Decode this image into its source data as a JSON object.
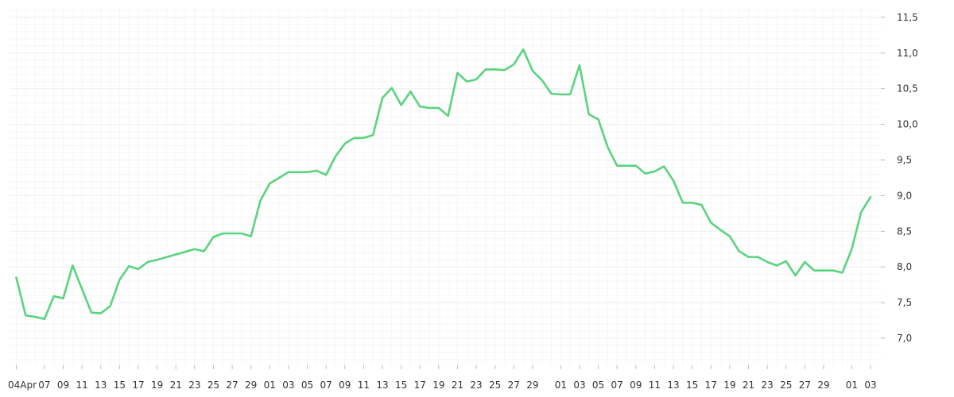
{
  "chart_data": {
    "type": "line",
    "title": "",
    "xlabel": "",
    "ylabel": "",
    "ylim": [
      6.6,
      11.6
    ],
    "y_ticks": [
      "7,0",
      "7,5",
      "8,0",
      "8,5",
      "9,0",
      "9,5",
      "10,0",
      "10,5",
      "11,0",
      "11,5"
    ],
    "y_tick_values": [
      7.0,
      7.5,
      8.0,
      8.5,
      9.0,
      9.5,
      10.0,
      10.5,
      11.0,
      11.5
    ],
    "x_tick_labels": [
      "04Apr",
      "07",
      "09",
      "11",
      "13",
      "15",
      "17",
      "19",
      "21",
      "23",
      "25",
      "27",
      "29",
      "01",
      "03",
      "05",
      "07",
      "09",
      "11",
      "13",
      "15",
      "17",
      "19",
      "21",
      "23",
      "25",
      "27",
      "29",
      "01",
      "03",
      "05",
      "07",
      "09",
      "11",
      "13",
      "15",
      "17",
      "19",
      "21",
      "23",
      "25",
      "27",
      "29",
      "01",
      "03"
    ],
    "x_tick_days": [
      0,
      3,
      5,
      7,
      9,
      11,
      13,
      15,
      17,
      19,
      21,
      23,
      25,
      27,
      29,
      31,
      33,
      35,
      37,
      39,
      41,
      43,
      45,
      47,
      49,
      51,
      53,
      55,
      58,
      60,
      62,
      64,
      66,
      68,
      70,
      72,
      74,
      76,
      78,
      80,
      82,
      84,
      86,
      89,
      91
    ],
    "grid": true,
    "legend": "none",
    "line_color": "#5ad37f",
    "series": [
      {
        "name": "",
        "x": [
          0,
          1,
          2,
          3,
          4,
          5,
          6,
          8,
          9,
          10,
          11,
          12,
          13,
          14,
          15,
          19,
          20,
          21,
          22,
          23,
          24,
          25,
          26,
          27,
          29,
          30,
          31,
          32,
          33,
          34,
          35,
          36,
          37,
          38,
          39,
          40,
          41,
          42,
          43,
          44,
          45,
          46,
          47,
          48,
          49,
          50,
          51,
          52,
          53,
          54,
          55,
          56,
          57,
          58,
          59,
          60,
          61,
          62,
          63,
          64,
          65,
          66,
          67,
          68,
          69,
          70,
          71,
          72,
          73,
          74,
          75,
          76,
          77,
          78,
          79,
          80,
          81,
          82,
          83,
          84,
          85,
          86,
          87,
          88,
          89,
          90,
          91
        ],
        "values": [
          7.85,
          7.32,
          7.3,
          7.27,
          7.59,
          7.56,
          8.02,
          7.36,
          7.35,
          7.45,
          7.82,
          8.01,
          7.97,
          8.07,
          8.1,
          8.25,
          8.22,
          8.42,
          8.47,
          8.47,
          8.47,
          8.43,
          8.93,
          9.17,
          9.33,
          9.33,
          9.33,
          9.35,
          9.29,
          9.55,
          9.73,
          9.81,
          9.81,
          9.85,
          10.37,
          10.51,
          10.27,
          10.46,
          10.25,
          10.23,
          10.23,
          10.12,
          10.72,
          10.6,
          10.63,
          10.77,
          10.77,
          10.76,
          10.84,
          11.05,
          10.75,
          10.62,
          10.43,
          10.42,
          10.42,
          10.83,
          10.14,
          10.07,
          9.68,
          9.42,
          9.42,
          9.42,
          9.31,
          9.34,
          9.41,
          9.21,
          8.9,
          8.9,
          8.87,
          8.62,
          8.52,
          8.43,
          8.22,
          8.14,
          8.14,
          8.07,
          8.02,
          8.08,
          7.88,
          8.07,
          7.95,
          7.95,
          7.95,
          7.92,
          8.25,
          8.77,
          8.98
        ]
      }
    ]
  }
}
